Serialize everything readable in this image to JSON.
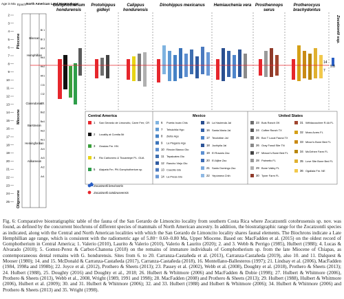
{
  "figure": {
    "header": {
      "age_ma": "Age in Ma",
      "epoch": "Epoch",
      "nalma": "North American Land Mammal age"
    },
    "epochs": [
      "Pliocene",
      "Miocene",
      "Oligocene"
    ],
    "nalma_ages": [
      "Blancan",
      "Hemphillian",
      "Clarendonian",
      "Barstovian",
      "Hemingfordian",
      "Arikareean"
    ],
    "stages": [
      "Bl 1",
      "Bl 3",
      "Hh4",
      "Hh3",
      "Hh2",
      "Hh1",
      "Cl3",
      "Cl2",
      "Cl1",
      "Ba2",
      "Ba1",
      "He2",
      "He1",
      "Ar4",
      "Ar3",
      "Ar2",
      "Ar1"
    ],
    "age_ticks": [
      "2",
      "3",
      "4",
      "5",
      "6",
      "7",
      "8",
      "9",
      "10",
      "11",
      "12",
      "13",
      "14",
      "15",
      "16",
      "17",
      "18",
      "19",
      "20",
      "21",
      "22",
      "23",
      "24",
      "25"
    ],
    "taxa": [
      {
        "name": "Gomphotherium",
        "name2": "hondurensis"
      },
      {
        "name": "Protohippus",
        "name2": "gidleyi"
      },
      {
        "name": "Calippus",
        "name2": "hondurensis"
      },
      {
        "name": "Dinohippus mexicanus",
        "name2": ""
      },
      {
        "name": "Hemiauchenia vera",
        "name2": ""
      },
      {
        "name": "Prosthennops",
        "name2": "serus"
      },
      {
        "name": "Protherocyus",
        "name2": "brachydontus"
      },
      {
        "name": "Zocatzontli ssp.",
        "name2": ""
      }
    ],
    "right_labels": {
      "val_1": "14",
      "val_2": "5.8",
      "val_3": "7"
    },
    "legend": {
      "central_america": {
        "title": "Central America",
        "items": [
          {
            "n": "1",
            "label": "San Gerardo de Limoncito, Carre Ferr, CR",
            "color": "#e6262c"
          },
          {
            "n": "2",
            "label": "Locality at Comita 5#",
            "color": "#111111"
          },
          {
            "n": "3",
            "label": "Gracias Fm. HN",
            "color": "#3a9e3a"
          },
          {
            "n": "4",
            "label": "Rio Carbonero & Ticuantepe PL. GUA",
            "color": "#e8d416"
          },
          {
            "n": "5",
            "label": "Alajuela Fm. PN Gomphotherium sp.",
            "color": "#2e9e4a"
          }
        ]
      },
      "mexico": {
        "title": "Mexico",
        "items": [
          {
            "n": "6",
            "label": "Puerta Ixcán Chis",
            "color": "#7fb3e0"
          },
          {
            "n": "7",
            "label": "Tehuichila Hgo",
            "color": "#5f9ad4"
          },
          {
            "n": "8",
            "label": "Zietla Hgo",
            "color": "#4582c6"
          },
          {
            "n": "9",
            "label": "La Plegaria Hgo",
            "color": "#3a72b8"
          },
          {
            "n": "10",
            "label": "Rincón Blanco Gto",
            "color": "#5b8ed0"
          },
          {
            "n": "11",
            "label": "Tepalcates Gto",
            "color": "#3f6fb0"
          },
          {
            "n": "12",
            "label": "Rancho Viejo Gto",
            "color": "#2e5aa0"
          },
          {
            "n": "13",
            "label": "Coecillo Gto",
            "color": "#4a79bf"
          },
          {
            "n": "14",
            "label": "La Presa Gto",
            "color": "#6a98d6"
          },
          {
            "n": "15",
            "label": "La Hacienda Jal",
            "color": "#2a4f90"
          },
          {
            "n": "16",
            "label": "Santa María Jal",
            "color": "#3561a6"
          },
          {
            "n": "17",
            "label": "Tecolotlán Jal",
            "color": "#4f86cb"
          },
          {
            "n": "18",
            "label": "Juchipila Jal",
            "color": "#2d5598"
          },
          {
            "n": "19",
            "label": "El Rosario Zac",
            "color": "#5c90d2"
          },
          {
            "n": "20",
            "label": "El Aljibe Zac",
            "color": "#3e6cb4"
          },
          {
            "n": "21",
            "label": "Santo Domingo Zac",
            "color": "#7aa9dd"
          },
          {
            "n": "22",
            "label": "Yepómera Chih",
            "color": "#8fb9e4"
          }
        ]
      },
      "united_states": {
        "title": "United States",
        "items": [
          {
            "n": "23",
            "label": "Buis Ranch OK",
            "color": "#6e6e6e"
          },
          {
            "n": "24",
            "label": "Coffee Ranch TX",
            "color": "#5a5a5a"
          },
          {
            "n": "25",
            "label": "Box T Local Fauna TX",
            "color": "#7c7c7c"
          },
          {
            "n": "26",
            "label": "Gray Fossil Site TN",
            "color": "#8a8a8a"
          },
          {
            "n": "27",
            "label": "Mixson's Bone Bed FL",
            "color": "#444444"
          },
          {
            "n": "28",
            "label": "Palmetto FL",
            "color": "#9a9a9a"
          },
          {
            "n": "29",
            "label": "Bone Valley FL",
            "color": "#b0b0b0"
          },
          {
            "n": "30",
            "label": "Tyner Farm FL",
            "color": "#8f3a2a"
          },
          {
            "n": "31",
            "label": "Withlacoochee R.4A FL",
            "color": "#a0452f"
          },
          {
            "n": "32",
            "label": "Moss Acres FL",
            "color": "#d4a017"
          },
          {
            "n": "33",
            "label": "Mixon's Bone Bed FL",
            "color": "#c98a15"
          },
          {
            "n": "34",
            "label": "McGehee Farm FL",
            "color": "#b8860b"
          },
          {
            "n": "35",
            "label": "Love Site Bone Bed FL",
            "color": "#e0b030"
          },
          {
            "n": "36",
            "label": "Ogallala Fm. NE",
            "color": "#f2c94c"
          }
        ]
      },
      "symbols": [
        {
          "label": "Zocatzontli brevirostris",
          "color": "#2a5fc4"
        },
        {
          "label": "Zocatzontli cotobruseensis",
          "color": "#e6262c"
        }
      ]
    }
  },
  "caption": {
    "lead": "Fig. 6: Comparative biostratigraphic table of the fauna of the San Gerardo de Limoncito locality from southern Costa Rica where Zocatzontli cotobrusensis sp. nov. was found, as defined by the concurrent biochrons of different species of mammals of North American ancestry. In addition, the biostratigraphic range for the Zocatzontli species as indicated, along with the Central and North American localities with which the San Gerardo de Limoncito locality shares faunal elements. The Biochrons indicate a Late Hemphillian age range, which is consistent with the radiometric age of 5.80= 0.60–0.80 Ma, Upper Miocene. Based on: MacFadden et al. (2015) on the oldest record of Gomphotherium in Central America; 1. Valerio (2010), Laurito & Valerio (2010), Valerio & Laurito (2020); 2. and 3. Webb & Perrigo (1985), Hulbert (1988); 4. Lucas & Alvarado (2010); 5. Gomez-Perez & Carbot-Chanona (2018) on the remains of immature individuals of Gomphotherium sp. from the late Miocene of Chiapas, as contemporaneous dental remains with G. hondurensis. Sites from 6. to 20. Carranza-Castañeda et al. (2013), Carranza-Castañeda (2019), also 10. and 11. Dalquest & Mooser (1980); 14. and 15. McDonald & Carranza-Castañeda (2017), Carranza-Castañeda (2018), 16. Montellano-Ballesteros (1997); 21. Lindsay et al. (2006), MacFadden (1984, 1998a and 1998b); 22. Joyce et al. (2012), Prothero & Sheets (2013); 23. Passey et al. (2002), Webb et al. (2008), Doughty et al. (2018), Prothero & Sheets (2013); 24. Hulbert (1988), 25. Doughty (2016) and Doughty et al., 2018; 26. Hulbert & Whitmore (2006) and MacFadden & Dobie (1998); 27. Hulbert & Whitmore (2006), Prothero & Sheets (2013), Webb et al., 2008, Wright (1989, 1991 and 1998); 28. MacFadden (2008) and Prothero & Sheets (2013); 29. Hulbert (1988), Hulbert & Whitmore (2006), Hulbert et al. (2009); 30. and 31. Hulbert & Whitmore (2006); 32. and 33. Hulbert (1988) and Hulbert & Whitmore (2006); 34. Hulbert & Whitmore (2006) and Prothero & Sheets (2013) and 35. Wright (1998)."
  }
}
